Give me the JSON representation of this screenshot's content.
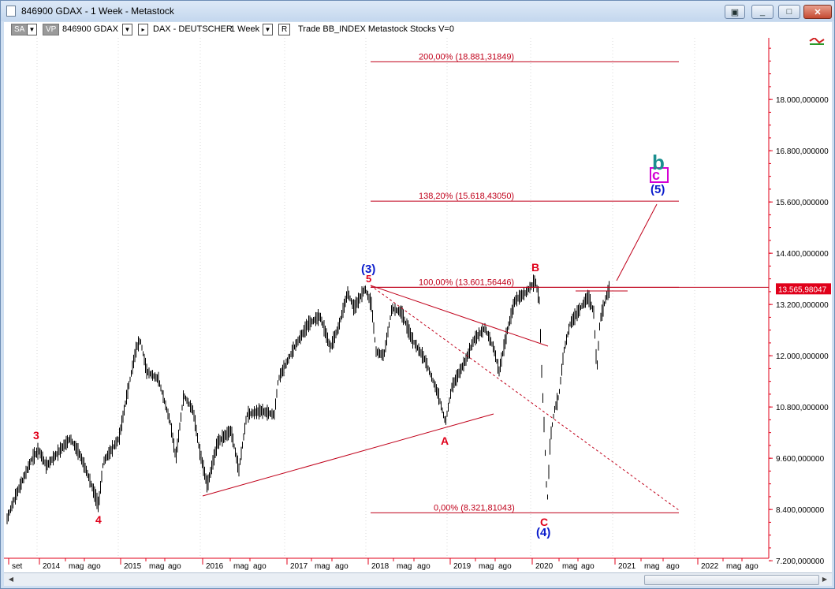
{
  "window": {
    "title": "846900 GDAX - 1 Week - Metastock",
    "buttons": {
      "restore_down": "▣",
      "minimize": "_",
      "maximize": "□",
      "close": "✕"
    }
  },
  "toolbar": {
    "sa_label": "SA",
    "vp_label": "VP",
    "symbol": "846900 GDAX",
    "security_name": "DAX - DEUTSCHER",
    "period": "1 Week",
    "r_label": "R",
    "info": "Trade  BB_INDEX  Metastock  Stocks  V=0"
  },
  "chart_data": {
    "type": "line",
    "title": "",
    "series": [],
    "y_ticks": [
      "7.200,000000",
      "8.400,000000",
      "9.600,000000",
      "10.800,000000",
      "12.000,000000",
      "13.200,000000",
      "14.400,000000",
      "15.600,000000",
      "16.800,000000",
      "18.000,000000"
    ],
    "y_range": [
      7200,
      19900
    ],
    "x_ticks": [
      "set",
      "2014",
      "mag",
      "ago",
      "2015",
      "mag",
      "ago",
      "2016",
      "mag",
      "ago",
      "2017",
      "mag",
      "ago",
      "2018",
      "mag",
      "ago",
      "2019",
      "mag",
      "ago",
      "2020",
      "mag",
      "ago",
      "2021",
      "mag",
      "ago",
      "2022",
      "mag",
      "ago"
    ],
    "last_price": "13.565,98047",
    "fib_levels": [
      {
        "label": "200,00% (18.881,31849)",
        "value": 18881.31849
      },
      {
        "label": "138,20% (15.618,43050)",
        "value": 15618.4305
      },
      {
        "label": "100,00% (13.601,56446)",
        "value": 13601.56446
      },
      {
        "label": "0,00% (8.321,81043)",
        "value": 8321.81043
      }
    ],
    "wave_labels": [
      {
        "text": "3",
        "color": "#e0001a"
      },
      {
        "text": "4",
        "color": "#e0001a"
      },
      {
        "text": "(3)",
        "color": "#0a1ccc"
      },
      {
        "text": "5",
        "color": "#e0001a"
      },
      {
        "text": "A",
        "color": "#e0001a"
      },
      {
        "text": "B",
        "color": "#e0001a"
      },
      {
        "text": "C",
        "color": "#e0001a"
      },
      {
        "text": "(4)",
        "color": "#0a1ccc"
      },
      {
        "text": "(5)",
        "color": "#0a1ccc"
      },
      {
        "text": "c",
        "color": "#d400d4"
      },
      {
        "text": "b",
        "color": "#1a8f8f"
      }
    ],
    "colors": {
      "price": "#000000",
      "annotation": "#c0001a",
      "last_price_bg": "#e0001a"
    }
  }
}
